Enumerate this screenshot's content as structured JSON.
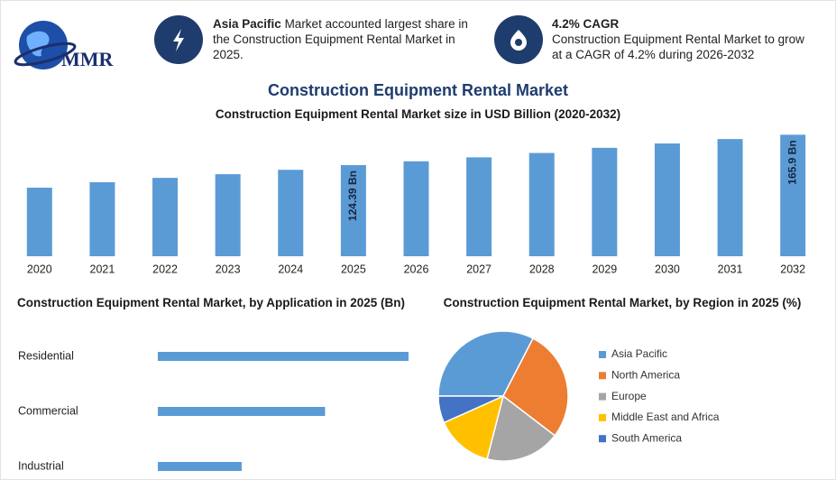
{
  "header": {
    "logo": "MMR",
    "highlights": [
      {
        "title": "Asia Pacific",
        "text": "Market accounted largest share in the Construction Equipment Rental Market in 2025."
      },
      {
        "title": "4.2% CAGR",
        "text": "Construction Equipment Rental Market to grow at a CAGR of 4.2% during 2026-2032"
      }
    ]
  },
  "title": "Construction Equipment Rental Market",
  "chart_data": [
    {
      "type": "bar",
      "title": "Construction Equipment Rental Market size in USD Billion (2020-2032)",
      "categories": [
        "2020",
        "2021",
        "2022",
        "2023",
        "2024",
        "2025",
        "2026",
        "2027",
        "2028",
        "2029",
        "2030",
        "2031",
        "2032"
      ],
      "values": [
        93.6,
        101,
        107,
        112,
        118,
        124.39,
        129.6,
        135,
        141,
        148,
        154,
        160,
        165.9
      ],
      "value_labels": [
        null,
        null,
        null,
        null,
        null,
        "124.39 Bn",
        null,
        null,
        null,
        null,
        null,
        null,
        "165.9 Bn"
      ],
      "color": "#5b9bd5",
      "ylim": [
        0,
        170
      ]
    },
    {
      "type": "hbar",
      "title": "Construction Equipment Rental Market, by Application in 2025 (Bn)",
      "categories": [
        "Residential",
        "Commercial",
        "Industrial"
      ],
      "values": [
        62.2,
        41.5,
        20.8
      ],
      "color": "#5b9bd5",
      "xlim": [
        0,
        65
      ]
    },
    {
      "type": "pie",
      "title": "Construction Equipment Rental Market, by Region in 2025 (%)",
      "categories": [
        "Asia Pacific",
        "North America",
        "Europe",
        "Middle East and Africa",
        "South America"
      ],
      "values": [
        32.6,
        27.8,
        18.6,
        14.3,
        6.7
      ],
      "colors": [
        "#5b9bd5",
        "#ed7d31",
        "#a5a5a5",
        "#ffc000",
        "#4472c4"
      ]
    }
  ]
}
